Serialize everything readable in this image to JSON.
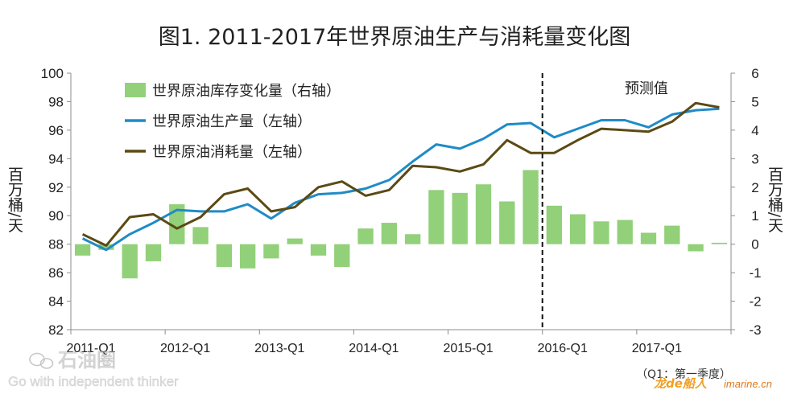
{
  "chart_data": {
    "type": "bar+line",
    "title": "图1. 2011-2017年世界原油生产与消耗量变化图",
    "x": [
      "2011-Q1",
      "2011-Q2",
      "2011-Q3",
      "2011-Q4",
      "2012-Q1",
      "2012-Q2",
      "2012-Q3",
      "2012-Q4",
      "2013-Q1",
      "2013-Q2",
      "2013-Q3",
      "2013-Q4",
      "2014-Q1",
      "2014-Q2",
      "2014-Q3",
      "2014-Q4",
      "2015-Q1",
      "2015-Q2",
      "2015-Q3",
      "2015-Q4",
      "2016-Q1",
      "2016-Q2",
      "2016-Q3",
      "2016-Q4",
      "2017-Q1",
      "2017-Q2",
      "2017-Q3",
      "2017-Q4"
    ],
    "x_tick_labels": [
      "2011-Q1",
      "2012-Q1",
      "2013-Q1",
      "2014-Q1",
      "2015-Q1",
      "2016-Q1",
      "2017-Q1"
    ],
    "x_tick_index": [
      0,
      4,
      8,
      12,
      16,
      20,
      24
    ],
    "y_left": {
      "label": "百万桶/天",
      "ylim": [
        82,
        100
      ],
      "ticks": [
        82,
        84,
        86,
        88,
        90,
        92,
        94,
        96,
        98,
        100
      ]
    },
    "y_right": {
      "label": "百万桶/天",
      "ylim": [
        -3,
        6
      ],
      "ticks": [
        -3,
        -2,
        -1,
        0,
        1,
        2,
        3,
        4,
        5,
        6
      ]
    },
    "series": [
      {
        "name": "世界原油库存变化量（右轴）",
        "kind": "bar",
        "axis": "right",
        "color": "#92d079",
        "values": [
          -0.4,
          -0.2,
          -1.2,
          -0.6,
          1.4,
          0.6,
          -0.8,
          -0.85,
          -0.5,
          0.2,
          -0.4,
          -0.8,
          0.55,
          0.75,
          0.35,
          1.9,
          1.8,
          2.1,
          1.5,
          2.6,
          1.35,
          1.05,
          0.8,
          0.85,
          0.4,
          0.65,
          -0.25,
          0.05
        ]
      },
      {
        "name": "世界原油生产量（左轴）",
        "kind": "line",
        "axis": "left",
        "color": "#1f8bc6",
        "values": [
          88.4,
          87.6,
          88.7,
          89.5,
          90.4,
          90.3,
          90.3,
          90.8,
          89.8,
          90.9,
          91.5,
          91.6,
          91.9,
          92.5,
          93.8,
          95.0,
          94.7,
          95.4,
          96.4,
          96.5,
          95.5,
          96.1,
          96.7,
          96.7,
          96.2,
          97.1,
          97.4,
          97.5
        ]
      },
      {
        "name": "世界原油消耗量（左轴）",
        "kind": "line",
        "axis": "left",
        "color": "#5b4a14",
        "values": [
          88.7,
          87.9,
          89.9,
          90.1,
          89.1,
          89.9,
          91.5,
          91.9,
          90.3,
          90.6,
          92.0,
          92.4,
          91.4,
          91.8,
          93.5,
          93.4,
          93.1,
          93.6,
          95.3,
          94.4,
          94.4,
          95.3,
          96.1,
          96.0,
          95.9,
          96.6,
          97.9,
          97.6
        ]
      }
    ],
    "forecast": {
      "start_index": 20,
      "label": "预测值"
    },
    "legend": "top-left",
    "note": "（Q1：第一季度）",
    "grid": false
  },
  "watermarks": {
    "source_name": "石油圈",
    "source_slogan": "Go with independent thinker",
    "site": "imarine.cn",
    "site_brand": "龙de船人"
  }
}
